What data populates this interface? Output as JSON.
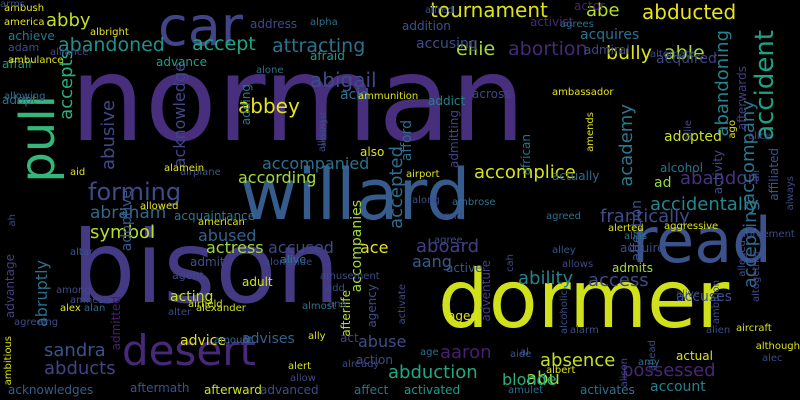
{
  "words": [
    {
      "text": "norman",
      "color": "#472f7d"
    },
    {
      "text": "bison",
      "color": "#443983"
    },
    {
      "text": "dormer",
      "color": "#d0e11c"
    },
    {
      "text": "willard",
      "color": "#365c8d"
    },
    {
      "text": "read",
      "color": "#3b528b"
    },
    {
      "text": "car",
      "color": "#414487"
    },
    {
      "text": "desert",
      "color": "#482878"
    },
    {
      "text": "pull",
      "color": "#35b779"
    },
    {
      "text": "forming",
      "color": "#3e4a89"
    },
    {
      "text": "abraham",
      "color": "#31688e"
    },
    {
      "text": "abbey",
      "color": "#e5e419"
    },
    {
      "text": "abigail",
      "color": "#3e4a89"
    },
    {
      "text": "tournament",
      "color": "#dce319"
    },
    {
      "text": "abducted",
      "color": "#e8e419"
    },
    {
      "text": "abe",
      "color": "#b5de2b"
    },
    {
      "text": "abby",
      "color": "#c2df23"
    },
    {
      "text": "abandoned",
      "color": "#21918c"
    },
    {
      "text": "accept",
      "color": "#20a486"
    },
    {
      "text": "attracting",
      "color": "#2c728e"
    },
    {
      "text": "ellie",
      "color": "#a0da39"
    },
    {
      "text": "abortion",
      "color": "#482878"
    },
    {
      "text": "bully",
      "color": "#dde318"
    },
    {
      "text": "able",
      "color": "#a0da39"
    },
    {
      "text": "accident",
      "color": "#1fa187"
    },
    {
      "text": "abandoning",
      "color": "#26828e"
    },
    {
      "text": "abusive",
      "color": "#3e4989"
    },
    {
      "text": "accepts",
      "color": "#29af7f"
    },
    {
      "text": "acknowledge",
      "color": "#3f4788"
    },
    {
      "text": "accompanied",
      "color": "#2c718e"
    },
    {
      "text": "according",
      "color": "#a5db36"
    },
    {
      "text": "accepted",
      "color": "#2f6c8e"
    },
    {
      "text": "academy",
      "color": "#2a788e"
    },
    {
      "text": "abandon",
      "color": "#46337f"
    },
    {
      "text": "accidentally",
      "color": "#24878e"
    },
    {
      "text": "frantically",
      "color": "#3e4c8a"
    },
    {
      "text": "symbol",
      "color": "#b8de29"
    },
    {
      "text": "abused",
      "color": "#32658e"
    },
    {
      "text": "accused",
      "color": "#3f4788"
    },
    {
      "text": "ace",
      "color": "#e5e419"
    },
    {
      "text": "aboard",
      "color": "#433e85"
    },
    {
      "text": "aang",
      "color": "#365d8d"
    },
    {
      "text": "ability",
      "color": "#25838e"
    },
    {
      "text": "access",
      "color": "#3e4a89"
    },
    {
      "text": "actress",
      "color": "#a0da39"
    },
    {
      "text": "abruptly",
      "color": "#2d708e"
    },
    {
      "text": "sandra",
      "color": "#3a538b"
    },
    {
      "text": "abducts",
      "color": "#414487"
    },
    {
      "text": "abuse",
      "color": "#3d4e8a"
    },
    {
      "text": "aaron",
      "color": "#481f70"
    },
    {
      "text": "absence",
      "color": "#c5e021"
    },
    {
      "text": "possessed",
      "color": "#482576"
    },
    {
      "text": "abduction",
      "color": "#22a785"
    },
    {
      "text": "abu",
      "color": "#a8db34"
    },
    {
      "text": "blonde",
      "color": "#29af7f"
    },
    {
      "text": "account",
      "color": "#26828e"
    },
    {
      "text": "accepting",
      "color": "#306a8e"
    },
    {
      "text": "accompany",
      "color": "#2b748e"
    },
    {
      "text": "accuses",
      "color": "#3b528b"
    },
    {
      "text": "accompanies",
      "color": "#a5db36"
    },
    {
      "text": "accomplice",
      "color": "#d8e219"
    },
    {
      "text": "acid",
      "color": "#2d708e"
    },
    {
      "text": "afford",
      "color": "#2f6c8e"
    },
    {
      "text": "adopted",
      "color": "#cae11f"
    },
    {
      "text": "adoptive",
      "color": "#375a8c"
    },
    {
      "text": "affection",
      "color": "#3b528b"
    },
    {
      "text": "accusing",
      "color": "#3d4e8a"
    },
    {
      "text": "acquires",
      "color": "#2c728e"
    },
    {
      "text": "acquired",
      "color": "#414487"
    },
    {
      "text": "actor",
      "color": "#482173"
    },
    {
      "text": "achieve",
      "color": "#2a788e"
    },
    {
      "text": "adam",
      "color": "#3e4c8a"
    },
    {
      "text": "affair",
      "color": "#21918c"
    },
    {
      "text": "adopt",
      "color": "#2d708e"
    },
    {
      "text": "advance",
      "color": "#1f9e89"
    },
    {
      "text": "afraid",
      "color": "#1f9a8a"
    },
    {
      "text": "address",
      "color": "#3e4989"
    },
    {
      "text": "addition",
      "color": "#3b528b"
    },
    {
      "text": "activist",
      "color": "#482878"
    },
    {
      "text": "admiral",
      "color": "#3e4a89"
    },
    {
      "text": "across",
      "color": "#3f4788"
    },
    {
      "text": "addict",
      "color": "#26828e"
    },
    {
      "text": "admitting",
      "color": "#414487"
    },
    {
      "text": "african",
      "color": "#2d708e"
    },
    {
      "text": "actually",
      "color": "#306a8e"
    },
    {
      "text": "activity",
      "color": "#3e4a89"
    },
    {
      "text": "ad",
      "color": "#95d840"
    },
    {
      "text": "admits",
      "color": "#a8db34"
    },
    {
      "text": "acquire",
      "color": "#3e4a89"
    },
    {
      "text": "acquaintance",
      "color": "#2a788e"
    },
    {
      "text": "acting",
      "color": "#c2df23"
    },
    {
      "text": "adult",
      "color": "#d0e11c"
    },
    {
      "text": "admit",
      "color": "#3b528b"
    },
    {
      "text": "agent",
      "color": "#3e4989"
    },
    {
      "text": "advantage",
      "color": "#433e85"
    },
    {
      "text": "advice",
      "color": "#dce319"
    },
    {
      "text": "advises",
      "color": "#34608d"
    },
    {
      "text": "admitted",
      "color": "#481f70"
    },
    {
      "text": "aftermath",
      "color": "#3b528b"
    },
    {
      "text": "afterward",
      "color": "#cde11d"
    },
    {
      "text": "advanced",
      "color": "#3e4c8a"
    },
    {
      "text": "affect",
      "color": "#2c728e"
    },
    {
      "text": "activated",
      "color": "#1f9a8a"
    },
    {
      "text": "activates",
      "color": "#2c718e"
    },
    {
      "text": "acknowledges",
      "color": "#365c8d"
    },
    {
      "text": "actual",
      "color": "#dce319"
    },
    {
      "text": "action",
      "color": "#3e4989"
    },
    {
      "text": "act",
      "color": "#433e85"
    },
    {
      "text": "adventure",
      "color": "#433e85"
    },
    {
      "text": "active",
      "color": "#39568c"
    },
    {
      "text": "afterlife",
      "color": "#b5de2b"
    },
    {
      "text": "agency",
      "color": "#3e4c8a"
    },
    {
      "text": "aged",
      "color": "#dde318"
    },
    {
      "text": "affiliated",
      "color": "#3b528b"
    },
    {
      "text": "afterwards",
      "color": "#433e85"
    },
    {
      "text": "adding",
      "color": "#2a788e"
    },
    {
      "text": "also",
      "color": "#dce319"
    },
    {
      "text": "alcohol",
      "color": "#2c728e"
    },
    {
      "text": "alive",
      "color": "#26828e"
    },
    {
      "text": "allowed",
      "color": "#e8e419"
    },
    {
      "text": "alan",
      "color": "#31688e"
    },
    {
      "text": "alex",
      "color": "#dce319"
    },
    {
      "text": "almost",
      "color": "#2c728e"
    },
    {
      "text": "already",
      "color": "#3e4989"
    },
    {
      "text": "alert",
      "color": "#d8e219"
    },
    {
      "text": "ally",
      "color": "#dce319"
    },
    {
      "text": "airfield",
      "color": "#d0e11c"
    },
    {
      "text": "alexander",
      "color": "#d0e11c"
    },
    {
      "text": "alter",
      "color": "#3e4c8a"
    },
    {
      "text": "amount",
      "color": "#2d708e"
    },
    {
      "text": "american",
      "color": "#dde318"
    },
    {
      "text": "amid",
      "color": "#3e4c8a"
    },
    {
      "text": "along",
      "color": "#3e4989"
    },
    {
      "text": "ambrose",
      "color": "#2d708e"
    },
    {
      "text": "agree",
      "color": "#3e4c8a"
    },
    {
      "text": "agreed",
      "color": "#2d708e"
    },
    {
      "text": "alerted",
      "color": "#dce319"
    },
    {
      "text": "alias",
      "color": "#2c718e"
    },
    {
      "text": "aggressive",
      "color": "#dce319"
    },
    {
      "text": "agreement",
      "color": "#3e4989"
    },
    {
      "text": "alley",
      "color": "#3b528b"
    },
    {
      "text": "allows",
      "color": "#3e4a89"
    },
    {
      "text": "alongside",
      "color": "#3e4989"
    },
    {
      "text": "airport",
      "color": "#dce319"
    },
    {
      "text": "airplane",
      "color": "#3b528b"
    },
    {
      "text": "alamein",
      "color": "#e5e419"
    },
    {
      "text": "aid",
      "color": "#dce319"
    },
    {
      "text": "altar",
      "color": "#3b528b"
    },
    {
      "text": "among",
      "color": "#3e4c8a"
    },
    {
      "text": "agreeing",
      "color": "#3e4a89"
    },
    {
      "text": "ambitious",
      "color": "#dce319"
    },
    {
      "text": "allowing",
      "color": "#2d708e"
    },
    {
      "text": "ambulance",
      "color": "#dce319"
    },
    {
      "text": "alliance",
      "color": "#3e4989"
    },
    {
      "text": "america",
      "color": "#e5e419"
    },
    {
      "text": "ambush",
      "color": "#e5e419"
    },
    {
      "text": "albright",
      "color": "#e5e419"
    },
    {
      "text": "alone",
      "color": "#2d708e"
    },
    {
      "text": "allison",
      "color": "#3e4989"
    },
    {
      "text": "amongst",
      "color": "#3e4c8a"
    },
    {
      "text": "ammunition",
      "color": "#dce319"
    },
    {
      "text": "alfred",
      "color": "#3e4c8a"
    },
    {
      "text": "alpha",
      "color": "#2d708e"
    },
    {
      "text": "agrees",
      "color": "#2d708e"
    },
    {
      "text": "alternate",
      "color": "#3e4a89"
    },
    {
      "text": "allie",
      "color": "#3e4c8a"
    },
    {
      "text": "ali",
      "color": "#3b528b"
    },
    {
      "text": "alice",
      "color": "#3e4989"
    },
    {
      "text": "ago",
      "color": "#dce319"
    },
    {
      "text": "always",
      "color": "#3e4a89"
    },
    {
      "text": "ambassador",
      "color": "#e5e419"
    },
    {
      "text": "amends",
      "color": "#dce319"
    },
    {
      "text": "al",
      "color": "#3b528b"
    },
    {
      "text": "ahead",
      "color": "#3e4989"
    },
    {
      "text": "alarm",
      "color": "#3e4c8a"
    },
    {
      "text": "amy",
      "color": "#2d708e"
    },
    {
      "text": "albert",
      "color": "#dce319"
    },
    {
      "text": "amulet",
      "color": "#2d708e"
    },
    {
      "text": "alcoholic",
      "color": "#3e4c8a"
    },
    {
      "text": "ambition",
      "color": "#3e4c8a"
    },
    {
      "text": "alive",
      "color": "#3e4a89"
    },
    {
      "text": "alien",
      "color": "#3e4989"
    },
    {
      "text": "aircraft",
      "color": "#dce319"
    },
    {
      "text": "although",
      "color": "#dce319"
    },
    {
      "text": "alec",
      "color": "#3e4989"
    },
    {
      "text": "alison",
      "color": "#3e4c8a"
    },
    {
      "text": "aide",
      "color": "#3b528b"
    },
    {
      "text": "age",
      "color": "#2d708e"
    },
    {
      "text": "allow",
      "color": "#3e4989"
    },
    {
      "text": "amnesia",
      "color": "#3e4a89"
    },
    {
      "text": "ana",
      "color": "#3e4c8a"
    },
    {
      "text": "ah",
      "color": "#3e4989"
    },
    {
      "text": "activate",
      "color": "#3e4989"
    },
    {
      "text": "amusement",
      "color": "#3e4c8a"
    },
    {
      "text": "add",
      "color": "#3e4989"
    },
    {
      "text": "cah",
      "color": "#3e4a89"
    },
    {
      "text": "alleged",
      "color": "#3e4c8a"
    },
    {
      "text": "altogether",
      "color": "#3e4989"
    },
    {
      "text": "arms",
      "color": "#3e4c8a"
    }
  ]
}
